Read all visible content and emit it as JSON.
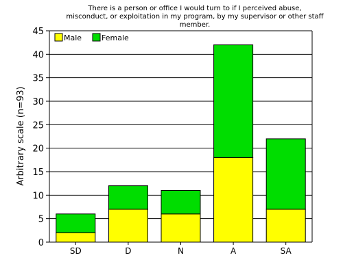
{
  "chart_data": {
    "type": "bar",
    "stacked": true,
    "title": "There is a person or office I would turn to if I perceived abuse, misconduct, or exploitation in my program, by my supervisor or other staff member.",
    "title_lines": [
      "There is a person or office I would turn to if I perceived abuse,",
      "misconduct, or exploitation in my program, by my supervisor or other staff",
      "member."
    ],
    "xlabel": "",
    "ylabel": "Arbitrary scale (n=93)",
    "ylim": [
      0,
      45
    ],
    "yticks": [
      0,
      5,
      10,
      15,
      20,
      25,
      30,
      35,
      40,
      45
    ],
    "categories": [
      "SD",
      "D",
      "N",
      "A",
      "SA"
    ],
    "series": [
      {
        "name": "Male",
        "color": "#ffff00",
        "values": [
          2,
          7,
          6,
          18,
          7
        ]
      },
      {
        "name": "Female",
        "color": "#00dd00",
        "values": [
          4,
          5,
          5,
          24,
          15
        ]
      }
    ],
    "grid": true,
    "legend_position": "top-left"
  }
}
